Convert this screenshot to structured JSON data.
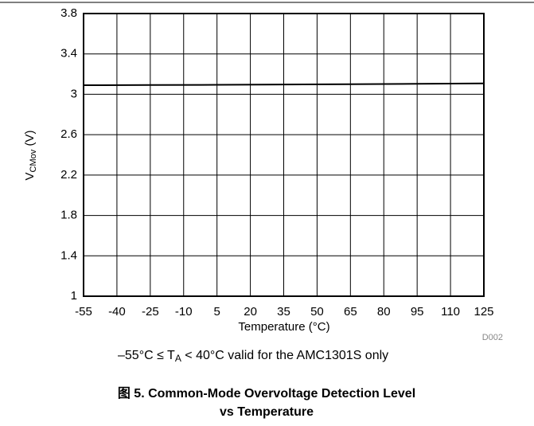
{
  "chart_data": {
    "type": "line",
    "y_label": {
      "main": "V",
      "sub": "CMov",
      "rest": " (V)"
    },
    "x_label": "Temperature (°C)",
    "code": "D002",
    "note": {
      "before": "–55°C ≤ T",
      "sub": "A",
      "after": " < 40°C valid for the AMC1301S only"
    },
    "caption": [
      "图 5. Common-Mode Overvoltage Detection Level",
      "vs Temperature"
    ],
    "x": [
      -55,
      -25,
      5,
      35,
      65,
      95,
      125
    ],
    "series": [
      {
        "name": "VCMov",
        "color": "#000000",
        "values": [
          3.09,
          3.092,
          3.094,
          3.097,
          3.1,
          3.104,
          3.108
        ]
      }
    ],
    "xlim": [
      -55,
      125
    ],
    "xticks": [
      -55,
      -40,
      -25,
      -10,
      5,
      20,
      35,
      50,
      65,
      80,
      95,
      110,
      125
    ],
    "ylim": [
      1,
      3.8
    ],
    "yticks": [
      1,
      1.4,
      1.8,
      2.2,
      2.6,
      3,
      3.4,
      3.8
    ],
    "grid": true
  }
}
